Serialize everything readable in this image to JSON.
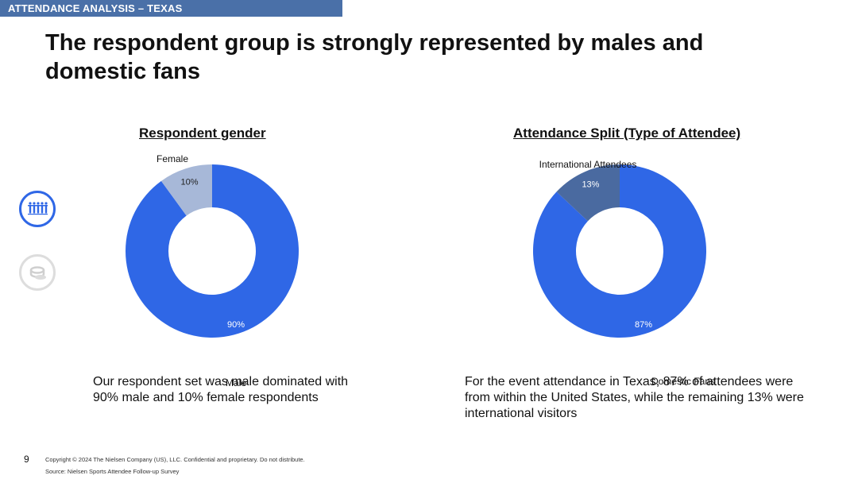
{
  "header": {
    "section_label": "ATTENDANCE ANALYSIS – TEXAS",
    "title": "The respondent group is strongly represented by males and domestic fans"
  },
  "sidebar": {
    "icons": [
      {
        "name": "people-group-icon",
        "active": true
      },
      {
        "name": "coins-icon",
        "active": false
      }
    ]
  },
  "colors": {
    "accent_blue": "#2f67e6",
    "light_slice": "#a7b8d8",
    "dark_slice": "#4a6aa0",
    "header_bar": "#4a70a8"
  },
  "chart_data": [
    {
      "type": "pie",
      "subtype": "donut",
      "title": "Respondent gender",
      "slices": [
        {
          "label": "Male",
          "value": 90,
          "value_label": "90%",
          "color": "#2f67e6"
        },
        {
          "label": "Female",
          "value": 10,
          "value_label": "10%",
          "color": "#a7b8d8"
        }
      ]
    },
    {
      "type": "pie",
      "subtype": "donut",
      "title": "Attendance Split (Type of Attendee)",
      "slices": [
        {
          "label": "Domestic Fans",
          "value": 87,
          "value_label": "87%",
          "color": "#2f67e6"
        },
        {
          "label": "International Attendees",
          "value": 13,
          "value_label": "13%",
          "color": "#4a6aa0"
        }
      ]
    }
  ],
  "captions": {
    "left": "Our respondent set was male dominated with 90% male and 10% female respondents",
    "right": "For the event attendance in Texas, 87% of attendees were from within the United States, while the remaining 13% were international visitors"
  },
  "footer": {
    "page_number": "9",
    "copyright": "Copyright © 2024 The Nielsen Company (US), LLC. Confidential and proprietary. Do not distribute.",
    "source": "Source: Nielsen Sports Attendee Follow-up Survey"
  }
}
